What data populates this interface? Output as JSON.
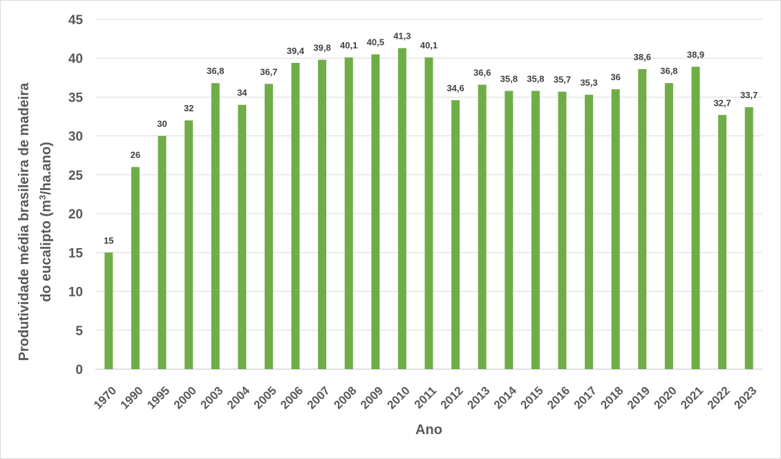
{
  "chart_data": {
    "type": "bar",
    "title": "",
    "xlabel": "Ano",
    "ylabel_line1": "Produtividade média brasileira de madeira",
    "ylabel_line2_prefix": "do eucalipto (m",
    "ylabel_line2_sup": "3",
    "ylabel_line2_suffix": "/ha.ano)",
    "ylim": [
      0,
      45
    ],
    "yticks": [
      0,
      5,
      10,
      15,
      20,
      25,
      30,
      35,
      40,
      45
    ],
    "grid": true,
    "legend": "none",
    "bar_color": "#70ad47",
    "categories": [
      "1970",
      "1990",
      "1995",
      "2000",
      "2003",
      "2004",
      "2005",
      "2006",
      "2007",
      "2008",
      "2009",
      "2010",
      "2011",
      "2012",
      "2013",
      "2014",
      "2015",
      "2016",
      "2017",
      "2018",
      "2019",
      "2020",
      "2021",
      "2022",
      "2023"
    ],
    "values": [
      15,
      26,
      30,
      32,
      36.8,
      34,
      36.7,
      39.4,
      39.8,
      40.1,
      40.5,
      41.3,
      40.1,
      34.6,
      36.6,
      35.8,
      35.8,
      35.7,
      35.3,
      36,
      38.6,
      36.8,
      38.9,
      32.7,
      33.7
    ],
    "value_labels": [
      "15",
      "26",
      "30",
      "32",
      "36,8",
      "34",
      "36,7",
      "39,4",
      "39,8",
      "40,1",
      "40,5",
      "41,3",
      "40,1",
      "34,6",
      "36,6",
      "35,8",
      "35,8",
      "35,7",
      "35,3",
      "36",
      "38,6",
      "36,8",
      "38,9",
      "32,7",
      "33,7"
    ]
  }
}
